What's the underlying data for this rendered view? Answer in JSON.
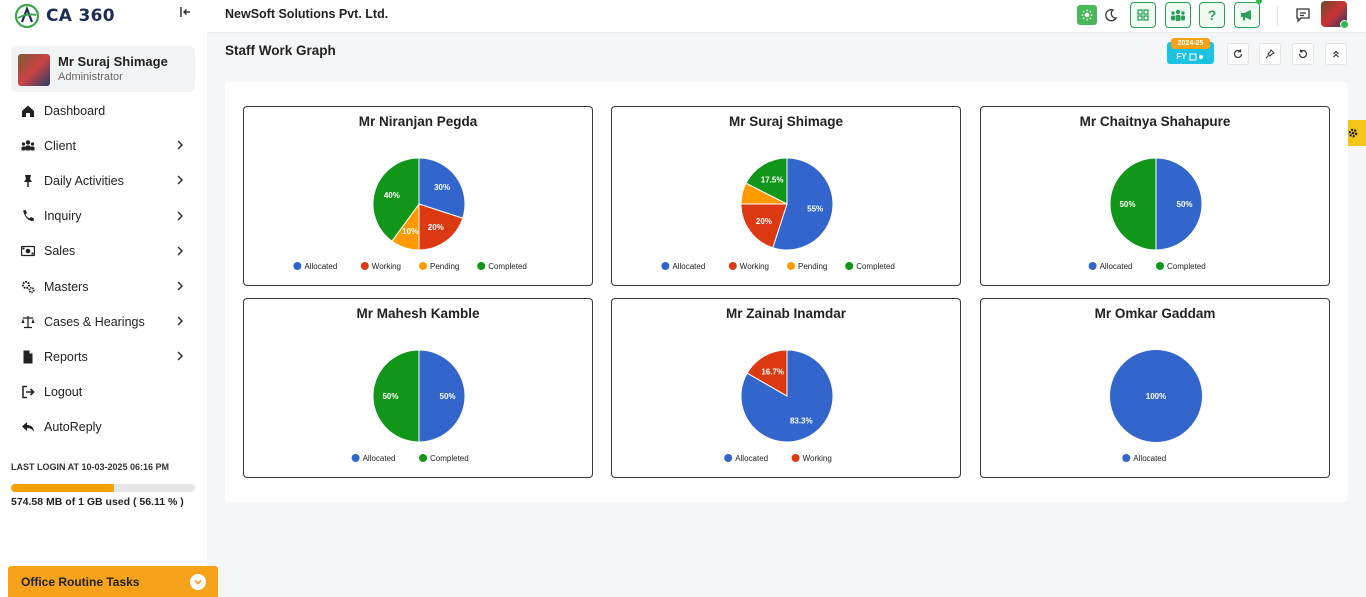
{
  "app": {
    "name": "CA 360",
    "company": "NewSoft Solutions Pvt. Ltd."
  },
  "user": {
    "name": "Mr Suraj Shimage",
    "role": "Administrator"
  },
  "sidebar": {
    "items": [
      {
        "label": "Dashboard",
        "icon": "home-icon",
        "chevron": false
      },
      {
        "label": "Client",
        "icon": "users-icon",
        "chevron": true
      },
      {
        "label": "Daily Activities",
        "icon": "pin-icon",
        "chevron": true
      },
      {
        "label": "Inquiry",
        "icon": "phone-icon",
        "chevron": true
      },
      {
        "label": "Sales",
        "icon": "money-icon",
        "chevron": true
      },
      {
        "label": "Masters",
        "icon": "gears-icon",
        "chevron": true
      },
      {
        "label": "Cases & Hearings",
        "icon": "scale-icon",
        "chevron": true
      },
      {
        "label": "Reports",
        "icon": "file-icon",
        "chevron": true
      },
      {
        "label": "Logout",
        "icon": "logout-icon",
        "chevron": false
      },
      {
        "label": "AutoReply",
        "icon": "reply-icon",
        "chevron": false
      }
    ]
  },
  "last_login": "LAST LOGIN AT 10-03-2025 06:16 PM",
  "storage": {
    "text": "574.58 MB of 1 GB used ( 56.11 % )",
    "fraction": 0.5611
  },
  "tasks": {
    "label": "Office Routine Tasks"
  },
  "page": {
    "title": "Staff Work Graph",
    "fy_year": "2024-25",
    "fy_label": "FY"
  },
  "colors": {
    "Allocated": "#3366cc",
    "Working": "#dc3912",
    "Pending": "#ff9900",
    "Completed": "#109618"
  },
  "chart_data": [
    {
      "type": "pie",
      "title": "Mr Niranjan Pegda",
      "labels": [
        "Allocated",
        "Working",
        "Pending",
        "Completed"
      ],
      "values": [
        30,
        20,
        10,
        40
      ]
    },
    {
      "type": "pie",
      "title": "Mr Suraj Shimage",
      "labels": [
        "Allocated",
        "Working",
        "Pending",
        "Completed"
      ],
      "values": [
        55,
        20,
        7.5,
        17.5
      ]
    },
    {
      "type": "pie",
      "title": "Mr Chaitnya Shahapure",
      "labels": [
        "Allocated",
        "Completed"
      ],
      "values": [
        50,
        50
      ]
    },
    {
      "type": "pie",
      "title": "Mr Mahesh Kamble",
      "labels": [
        "Allocated",
        "Completed"
      ],
      "values": [
        50,
        50
      ]
    },
    {
      "type": "pie",
      "title": "Mr Zainab Inamdar",
      "labels": [
        "Allocated",
        "Working"
      ],
      "values": [
        83.3,
        16.7
      ]
    },
    {
      "type": "pie",
      "title": "Mr Omkar Gaddam",
      "labels": [
        "Allocated"
      ],
      "values": [
        100
      ]
    }
  ]
}
